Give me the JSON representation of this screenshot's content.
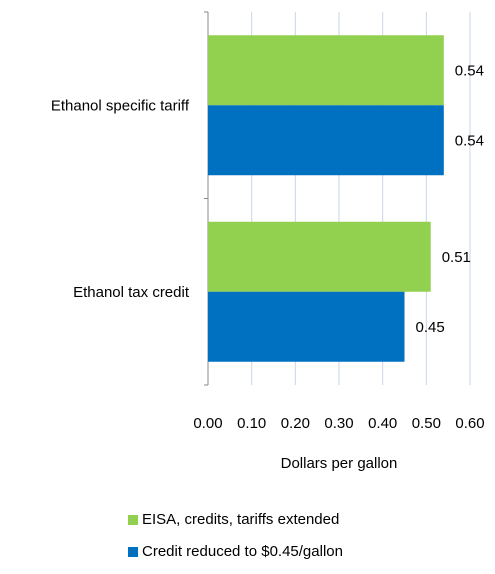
{
  "chart_data": {
    "type": "bar",
    "orientation": "horizontal",
    "categories": [
      "Ethanol specific tariff",
      "Ethanol tax credit"
    ],
    "series": [
      {
        "name": "EISA, credits, tariffs extended",
        "color": "#92d050",
        "values": [
          0.54,
          0.51
        ],
        "labels": [
          "0.54",
          "0.51"
        ]
      },
      {
        "name": "Credit reduced to $0.45/gallon",
        "color": "#0070c0",
        "values": [
          0.54,
          0.45
        ],
        "labels": [
          "0.54",
          "0.45"
        ]
      }
    ],
    "xlabel": "Dollars per gallon",
    "xlim": [
      0,
      0.6
    ],
    "xticks": [
      "0.00",
      "0.10",
      "0.20",
      "0.30",
      "0.40",
      "0.50",
      "0.60"
    ],
    "grid": true,
    "legend_position": "bottom"
  }
}
